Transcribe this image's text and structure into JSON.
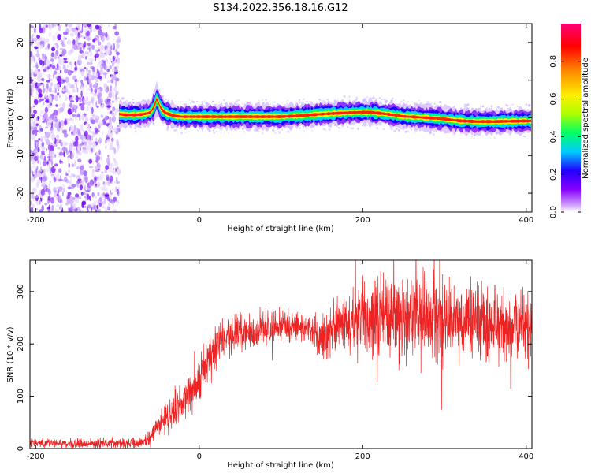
{
  "title": "S134.2022.356.18.16.G12",
  "chart_data": [
    {
      "type": "heatmap",
      "xlabel": "Height of straight line (km)",
      "ylabel": "Frequency (Hz)",
      "xlim": [
        -207,
        407
      ],
      "ylim": [
        -25,
        25
      ],
      "x_ticks": [
        -200,
        0,
        200,
        400
      ],
      "y_ticks": [
        -20,
        -10,
        0,
        10,
        20
      ],
      "noise_region_x": [
        -207,
        -98
      ],
      "ridge": {
        "x": [
          -98,
          -90,
          -80,
          -70,
          -60,
          -55,
          -52,
          -50,
          -48,
          -45,
          -40,
          -30,
          -20,
          0,
          50,
          100,
          125,
          150,
          175,
          195,
          210,
          230,
          250,
          280,
          300,
          320,
          340,
          360,
          380,
          407
        ],
        "freq": [
          1.0,
          0.8,
          0.8,
          0.9,
          1.4,
          3.0,
          5.0,
          4.2,
          3.0,
          2.0,
          1.2,
          0.5,
          0.3,
          0.3,
          0.3,
          0.3,
          0.6,
          1.0,
          1.3,
          1.5,
          1.5,
          1.0,
          0.4,
          0.0,
          -0.3,
          -0.8,
          -1.0,
          -1.0,
          -0.9,
          -0.8
        ]
      },
      "colorbar": {
        "label": "Normalized spectral amplitude",
        "range": [
          0,
          1
        ],
        "ticks": [
          0.0,
          0.2,
          0.4,
          0.6,
          0.8
        ],
        "colormap": [
          "#ffffff",
          "#cc99ff",
          "#8800ff",
          "#2200ff",
          "#00ccff",
          "#00ff66",
          "#aaff00",
          "#ffee00",
          "#ff8800",
          "#ff0000",
          "#ff0077"
        ]
      }
    },
    {
      "type": "line",
      "xlabel": "Height of straight line (km)",
      "ylabel": "SNR (10 * v/v)",
      "xlim": [
        -207,
        407
      ],
      "ylim": [
        0,
        360
      ],
      "x_ticks": [
        -200,
        0,
        200,
        400
      ],
      "y_ticks": [
        0,
        100,
        200,
        300
      ],
      "color": "#ee2222",
      "trend": {
        "x": [
          -207,
          -100,
          -65,
          -50,
          -30,
          -10,
          0,
          10,
          25,
          40,
          80,
          130,
          150,
          170,
          210,
          260,
          300,
          350,
          407
        ],
        "y": [
          10,
          10,
          12,
          45,
          70,
          110,
          130,
          170,
          200,
          215,
          230,
          235,
          210,
          240,
          250,
          250,
          245,
          240,
          235
        ]
      },
      "noise_amplitude": {
        "x": [
          -207,
          -65,
          -40,
          0,
          40,
          140,
          180,
          230,
          300,
          407
        ],
        "y": [
          4,
          5,
          14,
          22,
          18,
          15,
          25,
          45,
          40,
          30
        ]
      }
    }
  ]
}
